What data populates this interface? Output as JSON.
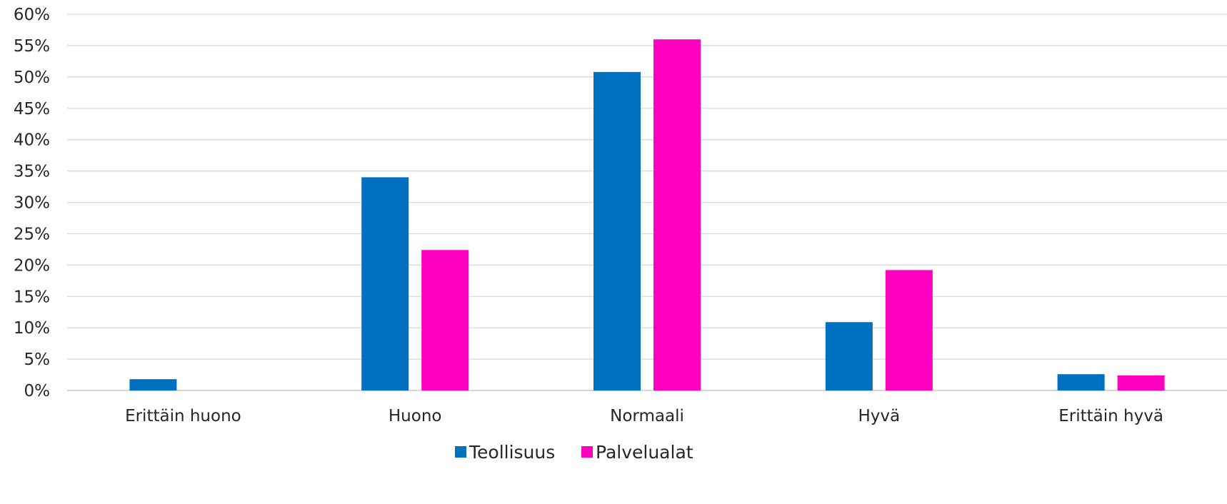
{
  "chart_data": {
    "type": "bar",
    "categories": [
      "Erittäin huono",
      "Huono",
      "Normaali",
      "Hyvä",
      "Erittäin hyvä"
    ],
    "series": [
      {
        "name": "Teollisuus",
        "color": "#0070C0",
        "values": [
          1.8,
          34.0,
          50.8,
          10.9,
          2.6
        ]
      },
      {
        "name": "Palvelualat",
        "color": "#FF00C0",
        "values": [
          0.0,
          22.4,
          56.0,
          19.2,
          2.4
        ]
      }
    ],
    "ylim": [
      0,
      60
    ],
    "yticks": [
      0,
      5,
      10,
      15,
      20,
      25,
      30,
      35,
      40,
      45,
      50,
      55,
      60
    ],
    "ytick_labels": [
      "0%",
      "5%",
      "10%",
      "15%",
      "20%",
      "25%",
      "30%",
      "35%",
      "40%",
      "45%",
      "50%",
      "55%",
      "60%"
    ],
    "ylabel": "",
    "xlabel": "",
    "title": "",
    "grid": true,
    "legend_position": "bottom-center"
  }
}
